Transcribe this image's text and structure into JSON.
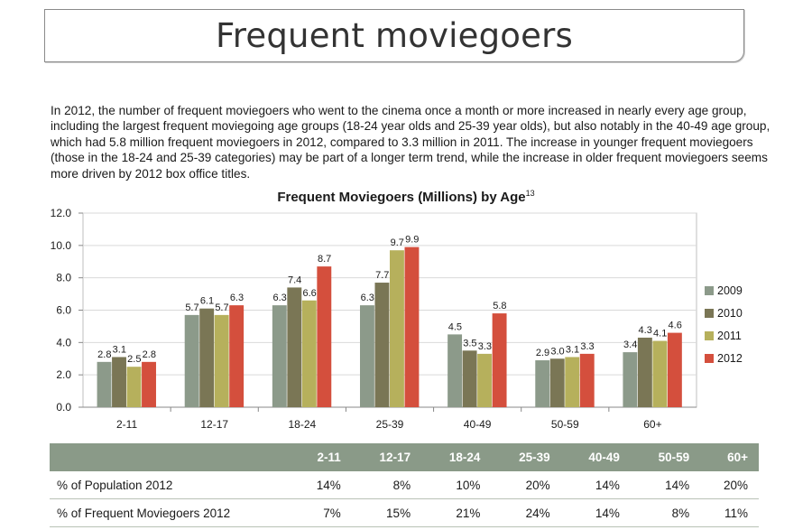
{
  "page_title": "Frequent moviegoers",
  "intro": "In 2012, the number of frequent moviegoers who went to the cinema once a month or more increased in nearly every age group, including the largest frequent moviegoing age groups (18-24 year olds and 25-39 year olds), but also notably in the 40-49 age group, which had 5.8 million frequent moviegoers in 2012, compared to 3.3 million in 2011.  The increase in younger frequent moviegoers (those in the 18-24 and 25-39 categories) may be part of a longer term trend, while the increase in older frequent moviegoers seems more driven by 2012 box office titles.",
  "chart_title": "Frequent Moviegoers (Millions) by Age",
  "chart_footnote": "13",
  "colors": {
    "2009": "#8c9a8a",
    "2010": "#7a7655",
    "2011": "#b6b05c",
    "2012": "#d44f3d",
    "table_header": "#8a9a88"
  },
  "chart_data": {
    "type": "bar",
    "title": "Frequent Moviegoers (Millions) by Age",
    "categories": [
      "2-11",
      "12-17",
      "18-24",
      "25-39",
      "40-49",
      "50-59",
      "60+"
    ],
    "series": [
      {
        "name": "2009",
        "values": [
          2.8,
          5.7,
          6.3,
          6.3,
          4.5,
          2.9,
          3.4
        ]
      },
      {
        "name": "2010",
        "values": [
          3.1,
          6.1,
          7.4,
          7.7,
          3.5,
          3.0,
          4.3
        ]
      },
      {
        "name": "2011",
        "values": [
          2.5,
          5.7,
          6.6,
          9.7,
          3.3,
          3.1,
          4.1
        ]
      },
      {
        "name": "2012",
        "values": [
          2.8,
          6.3,
          8.7,
          9.9,
          5.8,
          3.3,
          4.6
        ]
      }
    ],
    "yticks": [
      "0.0",
      "2.0",
      "4.0",
      "6.0",
      "8.0",
      "10.0",
      "12.0"
    ],
    "ylim": [
      0,
      12
    ],
    "grid": "horizontal",
    "legend": "right",
    "xlabel": "",
    "ylabel": ""
  },
  "table": {
    "headers": [
      "",
      "2-11",
      "12-17",
      "18-24",
      "25-39",
      "40-49",
      "50-59",
      "60+"
    ],
    "rows": [
      [
        "% of Population 2012",
        "14%",
        "8%",
        "10%",
        "20%",
        "14%",
        "14%",
        "20%"
      ],
      [
        "% of Frequent Moviegoers 2012",
        "7%",
        "15%",
        "21%",
        "24%",
        "14%",
        "8%",
        "11%"
      ]
    ]
  }
}
